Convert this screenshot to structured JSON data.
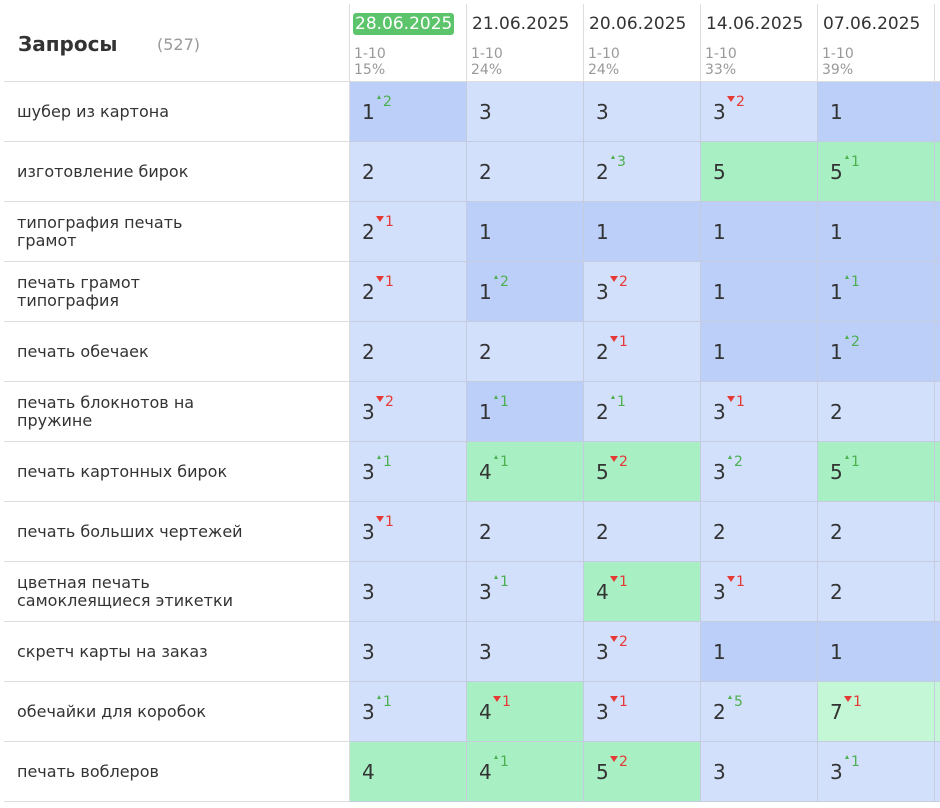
{
  "header": {
    "title": "Запросы",
    "count": "(527)"
  },
  "columns": [
    {
      "date": "28.06.2025",
      "range": "1-10",
      "share": "15%"
    },
    {
      "date": "21.06.2025",
      "range": "1-10",
      "share": "24%"
    },
    {
      "date": "20.06.2025",
      "range": "1-10",
      "share": "24%"
    },
    {
      "date": "14.06.2025",
      "range": "1-10",
      "share": "33%"
    },
    {
      "date": "07.06.2025",
      "range": "1-10",
      "share": "39%"
    }
  ],
  "rows": [
    {
      "query": "шубер из картона",
      "cells": [
        {
          "pos": 1,
          "chg": 2,
          "dir": "up"
        },
        {
          "pos": 3
        },
        {
          "pos": 3
        },
        {
          "pos": 3,
          "chg": 2,
          "dir": "down"
        },
        {
          "pos": 1
        }
      ]
    },
    {
      "query": "изготовление бирок",
      "cells": [
        {
          "pos": 2
        },
        {
          "pos": 2
        },
        {
          "pos": 2,
          "chg": 3,
          "dir": "up"
        },
        {
          "pos": 5
        },
        {
          "pos": 5,
          "chg": 1,
          "dir": "up"
        }
      ]
    },
    {
      "query": "типография печать грамот",
      "cells": [
        {
          "pos": 2,
          "chg": 1,
          "dir": "down"
        },
        {
          "pos": 1
        },
        {
          "pos": 1
        },
        {
          "pos": 1
        },
        {
          "pos": 1
        }
      ]
    },
    {
      "query": "печать грамот типография",
      "cells": [
        {
          "pos": 2,
          "chg": 1,
          "dir": "down"
        },
        {
          "pos": 1,
          "chg": 2,
          "dir": "up"
        },
        {
          "pos": 3,
          "chg": 2,
          "dir": "down"
        },
        {
          "pos": 1
        },
        {
          "pos": 1,
          "chg": 1,
          "dir": "up"
        }
      ]
    },
    {
      "query": "печать обечаек",
      "cells": [
        {
          "pos": 2
        },
        {
          "pos": 2
        },
        {
          "pos": 2,
          "chg": 1,
          "dir": "down"
        },
        {
          "pos": 1
        },
        {
          "pos": 1,
          "chg": 2,
          "dir": "up"
        }
      ]
    },
    {
      "query": "печать блокнотов на пружине",
      "cells": [
        {
          "pos": 3,
          "chg": 2,
          "dir": "down"
        },
        {
          "pos": 1,
          "chg": 1,
          "dir": "up"
        },
        {
          "pos": 2,
          "chg": 1,
          "dir": "up"
        },
        {
          "pos": 3,
          "chg": 1,
          "dir": "down"
        },
        {
          "pos": 2
        }
      ]
    },
    {
      "query": "печать картонных бирок",
      "cells": [
        {
          "pos": 3,
          "chg": 1,
          "dir": "up"
        },
        {
          "pos": 4,
          "chg": 1,
          "dir": "up"
        },
        {
          "pos": 5,
          "chg": 2,
          "dir": "down"
        },
        {
          "pos": 3,
          "chg": 2,
          "dir": "up"
        },
        {
          "pos": 5,
          "chg": 1,
          "dir": "up"
        }
      ]
    },
    {
      "query": "печать больших чертежей",
      "cells": [
        {
          "pos": 3,
          "chg": 1,
          "dir": "down"
        },
        {
          "pos": 2
        },
        {
          "pos": 2
        },
        {
          "pos": 2
        },
        {
          "pos": 2
        }
      ]
    },
    {
      "query": "цветная печать самоклеящиеся этикетки",
      "cells": [
        {
          "pos": 3
        },
        {
          "pos": 3,
          "chg": 1,
          "dir": "up"
        },
        {
          "pos": 4,
          "chg": 1,
          "dir": "down"
        },
        {
          "pos": 3,
          "chg": 1,
          "dir": "down"
        },
        {
          "pos": 2
        }
      ]
    },
    {
      "query": "скретч карты на заказ",
      "cells": [
        {
          "pos": 3
        },
        {
          "pos": 3
        },
        {
          "pos": 3,
          "chg": 2,
          "dir": "down"
        },
        {
          "pos": 1
        },
        {
          "pos": 1
        }
      ]
    },
    {
      "query": "обечайки для коробок",
      "cells": [
        {
          "pos": 3,
          "chg": 1,
          "dir": "up"
        },
        {
          "pos": 4,
          "chg": 1,
          "dir": "down"
        },
        {
          "pos": 3,
          "chg": 1,
          "dir": "down"
        },
        {
          "pos": 2,
          "chg": 5,
          "dir": "up"
        },
        {
          "pos": 7,
          "chg": 1,
          "dir": "down"
        }
      ]
    },
    {
      "query": "печать воблеров",
      "cells": [
        {
          "pos": 4
        },
        {
          "pos": 4,
          "chg": 1,
          "dir": "up"
        },
        {
          "pos": 5,
          "chg": 2,
          "dir": "down"
        },
        {
          "pos": 3
        },
        {
          "pos": 3,
          "chg": 1,
          "dir": "up"
        }
      ]
    }
  ]
}
